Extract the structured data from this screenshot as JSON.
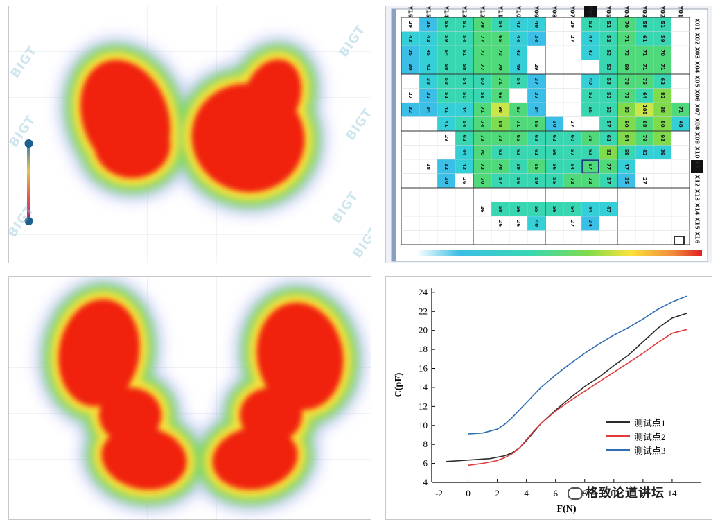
{
  "colors": {
    "top_bar": "#f08a3c",
    "heat_hot": "#f02010",
    "heat_warm": "#fbe23a",
    "heat_mid": "#6fd55a",
    "heat_cool": "#9fa8f5",
    "series1": "#2b2b2b",
    "series2": "#e03a3a",
    "series3": "#2f6fb0"
  },
  "heatmap_top_left": {
    "watermark": "BIGT",
    "slider": {
      "top_color": "#1d5f8e",
      "bottom_color": "#1d5f8e"
    }
  },
  "heatmap_bottom_left": {},
  "sensor_grid": {
    "columns": [
      "Y16",
      "Y15",
      "Y14",
      "Y13",
      "Y12",
      "Y11",
      "Y10",
      "Y09",
      "Y08",
      "Y07",
      "Y06",
      "Y05",
      "Y04",
      "Y03",
      "Y02",
      "Y01"
    ],
    "rows": [
      "X01",
      "X02",
      "X03",
      "X04",
      "X05",
      "X06",
      "X07",
      "X08",
      "X09",
      "X10",
      "X11",
      "X12",
      "X13",
      "X14",
      "X15",
      "X16"
    ],
    "highlighted_column": "Y06",
    "highlighted_row": "X11",
    "cells": [
      [
        29,
        35,
        55,
        51,
        79,
        54,
        43,
        40,
        null,
        29,
        52,
        52,
        70,
        58,
        51,
        null
      ],
      [
        43,
        42,
        59,
        54,
        77,
        65,
        44,
        34,
        null,
        27,
        47,
        52,
        71,
        61,
        59,
        null
      ],
      [
        35,
        45,
        54,
        51,
        77,
        73,
        43,
        null,
        null,
        null,
        47,
        53,
        73,
        71,
        70,
        null
      ],
      [
        30,
        42,
        58,
        58,
        77,
        70,
        49,
        29,
        null,
        null,
        null,
        53,
        69,
        71,
        71,
        null
      ],
      [
        null,
        38,
        58,
        54,
        50,
        71,
        54,
        37,
        null,
        null,
        40,
        53,
        78,
        75,
        62,
        null
      ],
      [
        27,
        32,
        51,
        50,
        58,
        69,
        null,
        37,
        null,
        null,
        52,
        52,
        73,
        64,
        82,
        null
      ],
      [
        32,
        34,
        41,
        44,
        71,
        98,
        67,
        34,
        null,
        null,
        55,
        53,
        83,
        105,
        88,
        71
      ],
      [
        null,
        null,
        41,
        54,
        74,
        88,
        71,
        65,
        30,
        27,
        null,
        57,
        90,
        68,
        80,
        48
      ],
      [
        null,
        null,
        29,
        62,
        73,
        73,
        65,
        63,
        62,
        60,
        76,
        62,
        84,
        79,
        93,
        null
      ],
      [
        null,
        null,
        null,
        44,
        70,
        63,
        63,
        61,
        56,
        57,
        63,
        83,
        58,
        42,
        39,
        null
      ],
      [
        null,
        28,
        32,
        43,
        73,
        70,
        59,
        65,
        56,
        64,
        67,
        77,
        47,
        null,
        null,
        null
      ],
      [
        null,
        null,
        30,
        26,
        70,
        57,
        56,
        59,
        55,
        72,
        72,
        57,
        35,
        27,
        null,
        null
      ],
      [
        null,
        null,
        null,
        null,
        null,
        null,
        null,
        null,
        null,
        null,
        null,
        null,
        null,
        null,
        null,
        null
      ],
      [
        null,
        null,
        null,
        null,
        26,
        58,
        56,
        55,
        56,
        64,
        44,
        47,
        null,
        null,
        null,
        null
      ],
      [
        null,
        null,
        null,
        null,
        null,
        26,
        26,
        40,
        null,
        27,
        34,
        null,
        null,
        null,
        null,
        null
      ],
      [
        null,
        null,
        null,
        null,
        null,
        null,
        null,
        null,
        null,
        null,
        null,
        null,
        null,
        null,
        null,
        null
      ]
    ]
  },
  "chart_data": {
    "type": "line",
    "title": "",
    "xlabel": "F(N)",
    "ylabel": "C(pF)",
    "xlim": [
      -2.5,
      16
    ],
    "ylim": [
      4,
      24.5
    ],
    "xticks": [
      -2,
      0,
      2,
      4,
      6,
      8,
      10,
      12,
      14
    ],
    "yticks": [
      4,
      6,
      8,
      10,
      12,
      14,
      16,
      18,
      20,
      22,
      24
    ],
    "grid": false,
    "legend_position": "center-right",
    "series": [
      {
        "name": "测试点1",
        "x": [
          -1.5,
          -0.5,
          0.5,
          1.5,
          2.5,
          3.0,
          3.5,
          4.0,
          4.5,
          5.0,
          6.0,
          7.0,
          8.0,
          9.0,
          10.0,
          11.0,
          12.0,
          13.0,
          14.0,
          15.0
        ],
        "y": [
          6.2,
          6.3,
          6.4,
          6.5,
          6.8,
          7.1,
          7.6,
          8.4,
          9.3,
          10.2,
          11.6,
          12.9,
          14.1,
          15.1,
          16.3,
          17.4,
          18.8,
          20.2,
          21.3,
          21.8
        ]
      },
      {
        "name": "测试点2",
        "x": [
          0.0,
          1.0,
          2.0,
          2.5,
          3.0,
          3.5,
          4.0,
          4.5,
          5.0,
          6.0,
          7.0,
          8.0,
          9.0,
          10.0,
          11.0,
          12.0,
          13.0,
          14.0,
          15.0
        ],
        "y": [
          5.8,
          6.0,
          6.3,
          6.6,
          7.0,
          7.6,
          8.5,
          9.4,
          10.2,
          11.5,
          12.6,
          13.6,
          14.6,
          15.6,
          16.6,
          17.6,
          18.7,
          19.7,
          20.1
        ]
      },
      {
        "name": "测试点3",
        "x": [
          0.0,
          1.0,
          2.0,
          2.5,
          3.0,
          3.5,
          4.0,
          4.5,
          5.0,
          6.0,
          7.0,
          8.0,
          9.0,
          10.0,
          11.0,
          12.0,
          13.0,
          14.0,
          15.0
        ],
        "y": [
          9.1,
          9.2,
          9.6,
          10.1,
          10.8,
          11.6,
          12.4,
          13.2,
          14.0,
          15.3,
          16.5,
          17.6,
          18.6,
          19.5,
          20.3,
          21.2,
          22.2,
          23.0,
          23.6
        ]
      }
    ]
  },
  "watermark_label": "格致论道讲坛"
}
